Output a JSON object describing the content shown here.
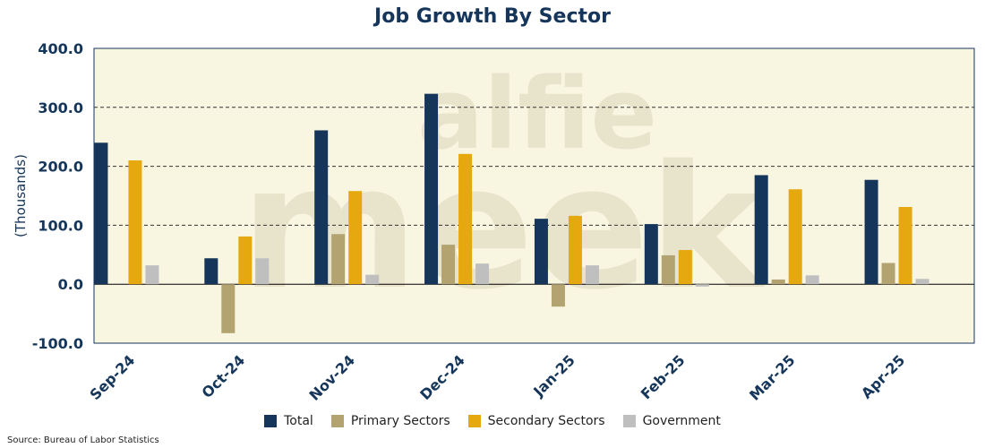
{
  "chart_data": {
    "type": "bar",
    "title": "Job Growth By Sector",
    "xlabel": "",
    "ylabel": "(Thousands)",
    "ylim": [
      -100,
      400
    ],
    "yticks": [
      "400.0",
      "300.0",
      "200.0",
      "100.0",
      "0.0",
      "-100.0"
    ],
    "ytick_values": [
      400,
      300,
      200,
      100,
      0,
      -100
    ],
    "categories": [
      "Sep-24",
      "Oct-24",
      "Nov-24",
      "Dec-24",
      "Jan-25",
      "Feb-25",
      "Mar-25",
      "Apr-25"
    ],
    "series": [
      {
        "name": "Total",
        "color": "#15365a",
        "values": [
          240,
          44,
          261,
          323,
          111,
          102,
          185,
          177
        ]
      },
      {
        "name": "Primary Sectors",
        "color": "#b3a370",
        "values": [
          0,
          -83,
          85,
          67,
          -38,
          49,
          8,
          36
        ]
      },
      {
        "name": "Secondary Sectors",
        "color": "#e5a80f",
        "values": [
          210,
          81,
          158,
          221,
          116,
          58,
          161,
          131
        ]
      },
      {
        "name": "Government",
        "color": "#bfbfbf",
        "values": [
          32,
          44,
          16,
          35,
          32,
          -4,
          15,
          9
        ]
      }
    ],
    "grid": true,
    "legend_position": "bottom",
    "background": "#f8f5e1"
  },
  "watermark": {
    "line1": "alfie",
    "line2": "meek"
  },
  "source": "Source: Bureau of Labor Statistics"
}
